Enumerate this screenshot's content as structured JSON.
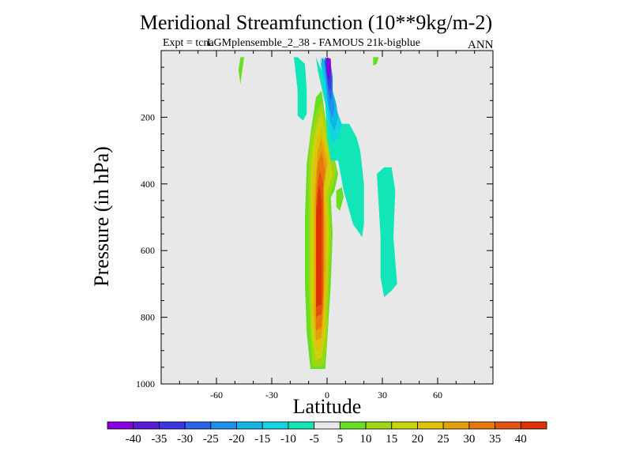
{
  "chart_data": {
    "type": "contour",
    "title": "Meridional Streamfunction (10**9kg/m-2)",
    "subtitle": "Expt = tcnaLGMplensemble_2_38 - FAMOUS 21k-bigblue",
    "subtitle_parts": [
      "Expt = tcna",
      "LGMplensemble_2_38 - FAMOUS 21k-bigblue"
    ],
    "season": "ANN",
    "xlabel": "Latitude",
    "ylabel": "Pressure (in hPa)",
    "xlim": [
      -90,
      90
    ],
    "ylim": [
      1000,
      0
    ],
    "x_ticks": [
      -60,
      -30,
      0,
      30,
      60
    ],
    "x_tick_labels": [
      "-60",
      "-30",
      "0",
      "30",
      "60"
    ],
    "y_ticks": [
      200,
      400,
      600,
      800,
      1000
    ],
    "y_tick_labels": [
      "200",
      "400",
      "600",
      "800",
      "1000"
    ],
    "background_color": "#e8e8e8",
    "colorbar": {
      "labels": [
        "-40",
        "-35",
        "-30",
        "-25",
        "-20",
        "-15",
        "-10",
        "-5",
        "5",
        "10",
        "15",
        "20",
        "25",
        "30",
        "35",
        "40"
      ],
      "colors": [
        "#8800e0",
        "#5a1cd6",
        "#3a36e2",
        "#2a64e8",
        "#1c90ea",
        "#11b6e6",
        "#12d4e2",
        "#12e6b8",
        "#e8e8e8",
        "#66e020",
        "#9ed812",
        "#c8d40c",
        "#e0c00a",
        "#e4a00c",
        "#e6780e",
        "#e25210",
        "#dd3300"
      ]
    },
    "regions": [
      {
        "name": "sh-cell-level-5",
        "level": 5,
        "points": [
          [
            -3,
            955
          ],
          [
            -1,
            955
          ],
          [
            0,
            880
          ],
          [
            2,
            700
          ],
          [
            3,
            550
          ],
          [
            2,
            440
          ],
          [
            4,
            420
          ],
          [
            6,
            370
          ],
          [
            3,
            300
          ],
          [
            -1,
            200
          ],
          [
            -3,
            120
          ],
          [
            -6,
            140
          ],
          [
            -9,
            250
          ],
          [
            -11,
            340
          ],
          [
            -12,
            500
          ],
          [
            -12,
            700
          ],
          [
            -11,
            850
          ],
          [
            -9,
            955
          ]
        ]
      },
      {
        "name": "sh-cell-level-10",
        "level": 10,
        "points": [
          [
            -5,
            950
          ],
          [
            -2,
            945
          ],
          [
            0,
            880
          ],
          [
            1,
            700
          ],
          [
            2,
            550
          ],
          [
            1,
            440
          ],
          [
            3,
            410
          ],
          [
            5,
            360
          ],
          [
            1,
            260
          ],
          [
            -3,
            150
          ],
          [
            -6,
            190
          ],
          [
            -9,
            260
          ],
          [
            -10,
            340
          ],
          [
            -10,
            500
          ],
          [
            -10,
            700
          ],
          [
            -9,
            850
          ],
          [
            -8,
            945
          ]
        ]
      },
      {
        "name": "sh-cell-level-15",
        "level": 15,
        "points": [
          [
            -6,
            930
          ],
          [
            -3,
            920
          ],
          [
            -1,
            850
          ],
          [
            0,
            700
          ],
          [
            1,
            550
          ],
          [
            0,
            430
          ],
          [
            3,
            370
          ],
          [
            0,
            280
          ],
          [
            -3,
            180
          ],
          [
            -6,
            230
          ],
          [
            -8,
            300
          ],
          [
            -9,
            400
          ],
          [
            -9,
            560
          ],
          [
            -9,
            750
          ],
          [
            -8,
            870
          ]
        ]
      },
      {
        "name": "sh-cell-level-20",
        "level": 20,
        "points": [
          [
            -6,
            900
          ],
          [
            -3,
            890
          ],
          [
            -1,
            820
          ],
          [
            0,
            650
          ],
          [
            0,
            520
          ],
          [
            -1,
            400
          ],
          [
            1,
            330
          ],
          [
            -3,
            230
          ],
          [
            -5,
            260
          ],
          [
            -7,
            330
          ],
          [
            -8,
            430
          ],
          [
            -8,
            600
          ],
          [
            -8,
            780
          ]
        ]
      },
      {
        "name": "sh-cell-level-25",
        "level": 25,
        "points": [
          [
            -6,
            870
          ],
          [
            -3,
            860
          ],
          [
            -2,
            790
          ],
          [
            -1,
            650
          ],
          [
            -1,
            520
          ],
          [
            -2,
            420
          ],
          [
            0,
            340
          ],
          [
            -3,
            260
          ],
          [
            -5,
            300
          ],
          [
            -6,
            370
          ],
          [
            -7,
            460
          ],
          [
            -7,
            620
          ],
          [
            -7,
            780
          ]
        ]
      },
      {
        "name": "sh-cell-level-30",
        "level": 30,
        "points": [
          [
            -6,
            840
          ],
          [
            -3,
            830
          ],
          [
            -2,
            760
          ],
          [
            -2,
            620
          ],
          [
            -2,
            500
          ],
          [
            -2,
            410
          ],
          [
            -1,
            360
          ],
          [
            -3,
            300
          ],
          [
            -5,
            340
          ],
          [
            -6,
            420
          ],
          [
            -6,
            560
          ],
          [
            -6,
            720
          ]
        ]
      },
      {
        "name": "sh-cell-level-35",
        "level": 35,
        "points": [
          [
            -6,
            800
          ],
          [
            -3,
            790
          ],
          [
            -2,
            720
          ],
          [
            -2,
            600
          ],
          [
            -2,
            480
          ],
          [
            -2,
            400
          ],
          [
            -4,
            360
          ],
          [
            -5,
            400
          ],
          [
            -6,
            470
          ],
          [
            -6,
            600
          ],
          [
            -6,
            740
          ]
        ]
      },
      {
        "name": "sh-cell-level-40",
        "level": 40,
        "points": [
          [
            -6,
            770
          ],
          [
            -3,
            760
          ],
          [
            -3,
            680
          ],
          [
            -3,
            560
          ],
          [
            -3,
            460
          ],
          [
            -4,
            400
          ],
          [
            -5,
            430
          ],
          [
            -6,
            500
          ],
          [
            -6,
            640
          ]
        ]
      },
      {
        "name": "nh-upper-level-m5",
        "level": -5,
        "points": [
          [
            -16,
            20
          ],
          [
            -12,
            40
          ],
          [
            -11,
            120
          ],
          [
            -11,
            190
          ],
          [
            -13,
            210
          ],
          [
            -16,
            195
          ],
          [
            -16,
            120
          ],
          [
            -18,
            20
          ]
        ]
      },
      {
        "name": "nh-upper-level-m5b",
        "level": -5,
        "points": [
          [
            -6,
            20
          ],
          [
            -3,
            60
          ],
          [
            -2,
            100
          ],
          [
            0,
            120
          ],
          [
            3,
            150
          ],
          [
            5,
            200
          ],
          [
            7,
            220
          ],
          [
            12,
            220
          ],
          [
            16,
            260
          ],
          [
            18,
            300
          ],
          [
            20,
            400
          ],
          [
            20,
            520
          ],
          [
            19,
            560
          ],
          [
            14,
            520
          ],
          [
            9,
            420
          ],
          [
            6,
            330
          ],
          [
            2,
            330
          ],
          [
            0,
            260
          ],
          [
            -1,
            160
          ],
          [
            -5,
            60
          ],
          [
            -6,
            20
          ]
        ]
      },
      {
        "name": "nh-upper-level-m10",
        "level": -10,
        "points": [
          [
            -4,
            20
          ],
          [
            -2,
            60
          ],
          [
            0,
            100
          ],
          [
            3,
            140
          ],
          [
            6,
            190
          ],
          [
            8,
            220
          ],
          [
            6,
            260
          ],
          [
            3,
            280
          ],
          [
            1,
            230
          ],
          [
            -1,
            150
          ],
          [
            -3,
            60
          ]
        ]
      },
      {
        "name": "nh-upper-level-m15",
        "level": -15,
        "points": [
          [
            -3,
            20
          ],
          [
            0,
            40
          ],
          [
            1,
            80
          ],
          [
            3,
            120
          ],
          [
            5,
            160
          ],
          [
            6,
            200
          ],
          [
            4,
            240
          ],
          [
            2,
            220
          ],
          [
            0,
            150
          ],
          [
            -1,
            90
          ],
          [
            -3,
            40
          ]
        ]
      },
      {
        "name": "nh-upper-level-m20",
        "level": -20,
        "points": [
          [
            -2,
            20
          ],
          [
            1,
            50
          ],
          [
            2,
            90
          ],
          [
            3,
            130
          ],
          [
            4,
            170
          ],
          [
            3,
            200
          ],
          [
            1,
            170
          ],
          [
            0,
            120
          ],
          [
            -1,
            60
          ]
        ]
      },
      {
        "name": "nh-upper-level-m25",
        "level": -25,
        "points": [
          [
            -1,
            20
          ],
          [
            2,
            40
          ],
          [
            3,
            80
          ],
          [
            3,
            120
          ],
          [
            2,
            150
          ],
          [
            1,
            130
          ],
          [
            0,
            90
          ],
          [
            -1,
            40
          ]
        ]
      },
      {
        "name": "nh-upper-level-m30",
        "level": -30,
        "points": [
          [
            -1,
            20
          ],
          [
            2,
            30
          ],
          [
            2,
            70
          ],
          [
            2,
            110
          ],
          [
            1,
            120
          ],
          [
            0,
            80
          ],
          [
            -1,
            40
          ]
        ]
      },
      {
        "name": "nh-upper-level-m40",
        "level": -40,
        "points": [
          [
            0,
            20
          ],
          [
            2,
            25
          ],
          [
            2,
            60
          ],
          [
            1,
            90
          ],
          [
            0,
            70
          ]
        ]
      },
      {
        "name": "nh-mid-level-m5",
        "level": -5,
        "points": [
          [
            27,
            370
          ],
          [
            31,
            350
          ],
          [
            35,
            350
          ],
          [
            37,
            420
          ],
          [
            36,
            560
          ],
          [
            38,
            700
          ],
          [
            35,
            720
          ],
          [
            31,
            740
          ],
          [
            29,
            680
          ],
          [
            29,
            560
          ],
          [
            28,
            460
          ]
        ]
      },
      {
        "name": "nh-mid-level-5",
        "level": 5,
        "points": [
          [
            5,
            420
          ],
          [
            8,
            410
          ],
          [
            9,
            440
          ],
          [
            7,
            480
          ],
          [
            5,
            470
          ]
        ]
      },
      {
        "name": "sh-small-level-5",
        "level": 5,
        "points": [
          [
            -47,
            20
          ],
          [
            -45,
            20
          ],
          [
            -46,
            60
          ],
          [
            -47,
            100
          ],
          [
            -48,
            60
          ]
        ]
      },
      {
        "name": "nh-top-level-5",
        "level": 5,
        "points": [
          [
            25,
            20
          ],
          [
            28,
            20
          ],
          [
            27,
            40
          ],
          [
            25,
            45
          ]
        ]
      }
    ]
  }
}
